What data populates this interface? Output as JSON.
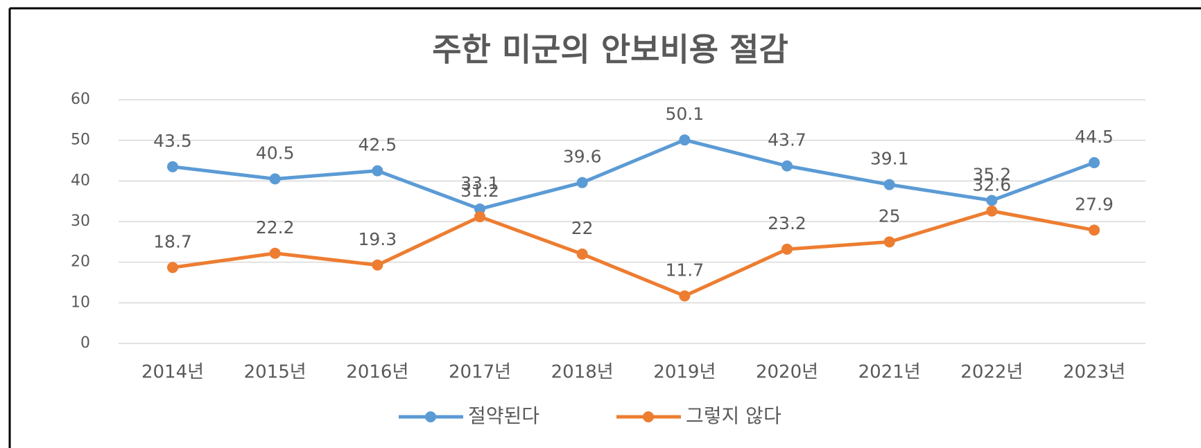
{
  "chart_data": {
    "type": "line",
    "title": "주한 미군의 안보비용 절감",
    "categories": [
      "2014년",
      "2015년",
      "2016년",
      "2017년",
      "2018년",
      "2019년",
      "2020년",
      "2021년",
      "2022년",
      "2023년"
    ],
    "series": [
      {
        "name": "절약된다",
        "color": "#5b9bd5",
        "values": [
          43.5,
          40.5,
          42.5,
          33.1,
          39.6,
          50.1,
          43.7,
          39.1,
          35.2,
          44.5
        ]
      },
      {
        "name": "그렇지 않다",
        "color": "#ed7d31",
        "values": [
          18.7,
          22.2,
          19.3,
          31.2,
          22,
          11.7,
          23.2,
          25,
          32.6,
          27.9
        ]
      }
    ],
    "ylim": [
      0,
      60
    ],
    "yticks": [
      0,
      10,
      20,
      30,
      40,
      50,
      60
    ],
    "grid": true,
    "legend": "bottom"
  }
}
